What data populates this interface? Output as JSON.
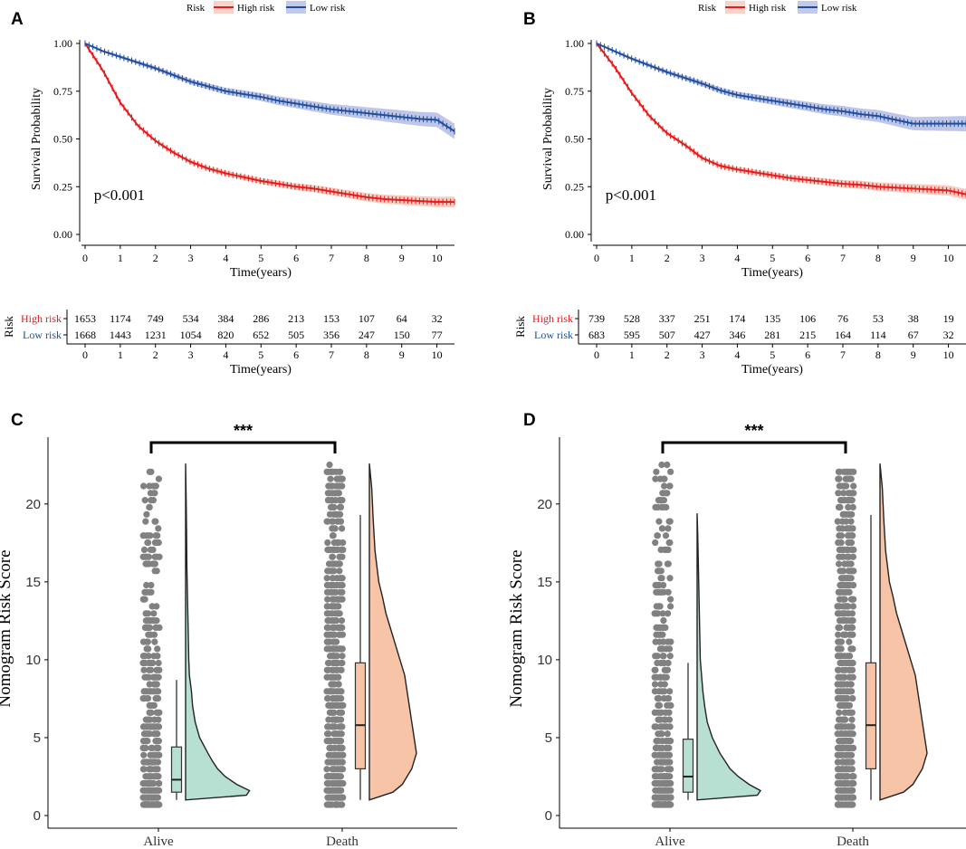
{
  "colors": {
    "high": "#e41a1c",
    "high_fill": "#f4b6a6",
    "low": "#1f4e9c",
    "low_fill": "#a9b3e0",
    "alive_fill": "#b7e0d2",
    "death_fill": "#f7c4a8",
    "axis": "#000000",
    "points": "#1a1a1a"
  },
  "chart_data": [
    {
      "panel": "A",
      "type": "line",
      "legend": {
        "title": "Risk",
        "items": [
          "High risk",
          "Low risk"
        ]
      },
      "annotation": "p<0.001",
      "xlabel": "Time(years)",
      "ylabel": "Survival Probability",
      "xlim": [
        0,
        10.5
      ],
      "ylim": [
        0,
        1
      ],
      "xticks": [
        "0",
        "1",
        "2",
        "3",
        "4",
        "5",
        "6",
        "7",
        "8",
        "9",
        "10"
      ],
      "yticks": [
        "0.00",
        "0.25",
        "0.50",
        "0.75",
        "1.00"
      ],
      "series": [
        {
          "name": "High risk",
          "x": [
            0,
            0.5,
            1,
            1.5,
            2,
            2.5,
            3,
            3.5,
            4,
            4.5,
            5,
            5.5,
            6,
            6.5,
            7,
            7.5,
            8,
            8.5,
            9,
            9.5,
            10,
            10.5
          ],
          "y": [
            1.0,
            0.86,
            0.69,
            0.57,
            0.49,
            0.43,
            0.38,
            0.345,
            0.32,
            0.3,
            0.28,
            0.265,
            0.25,
            0.24,
            0.225,
            0.21,
            0.195,
            0.185,
            0.18,
            0.175,
            0.17,
            0.17
          ]
        },
        {
          "name": "Low risk",
          "x": [
            0,
            0.5,
            1,
            1.5,
            2,
            2.5,
            3,
            3.5,
            4,
            4.5,
            5,
            5.5,
            6,
            6.5,
            7,
            7.5,
            8,
            8.5,
            9,
            9.5,
            10,
            10.5
          ],
          "y": [
            1.0,
            0.96,
            0.93,
            0.9,
            0.87,
            0.835,
            0.8,
            0.775,
            0.75,
            0.735,
            0.72,
            0.7,
            0.685,
            0.67,
            0.655,
            0.645,
            0.635,
            0.625,
            0.615,
            0.605,
            0.6,
            0.54
          ]
        }
      ],
      "risk_table": {
        "title": "Risk",
        "xlabel": "Time(years)",
        "rows": [
          {
            "label": "High risk",
            "counts": [
              "1653",
              "1174",
              "749",
              "534",
              "384",
              "286",
              "213",
              "153",
              "107",
              "64",
              "32"
            ]
          },
          {
            "label": "Low risk",
            "counts": [
              "1668",
              "1443",
              "1231",
              "1054",
              "820",
              "652",
              "505",
              "356",
              "247",
              "150",
              "77"
            ]
          }
        ]
      }
    },
    {
      "panel": "B",
      "type": "line",
      "legend": {
        "title": "Risk",
        "items": [
          "High risk",
          "Low risk"
        ]
      },
      "annotation": "p<0.001",
      "xlabel": "Time(years)",
      "ylabel": "Survival Probability",
      "xlim": [
        0,
        10.5
      ],
      "ylim": [
        0,
        1
      ],
      "xticks": [
        "0",
        "1",
        "2",
        "3",
        "4",
        "5",
        "6",
        "7",
        "8",
        "9",
        "10"
      ],
      "yticks": [
        "0.00",
        "0.25",
        "0.50",
        "0.75",
        "1.00"
      ],
      "series": [
        {
          "name": "High risk",
          "x": [
            0,
            0.5,
            1,
            1.5,
            2,
            2.5,
            3,
            3.5,
            4,
            4.5,
            5,
            5.5,
            6,
            6.5,
            7,
            7.5,
            8,
            8.5,
            9,
            9.5,
            10,
            10.5
          ],
          "y": [
            1.0,
            0.88,
            0.74,
            0.62,
            0.53,
            0.47,
            0.4,
            0.36,
            0.34,
            0.325,
            0.31,
            0.295,
            0.285,
            0.275,
            0.265,
            0.26,
            0.25,
            0.245,
            0.24,
            0.235,
            0.23,
            0.21
          ]
        },
        {
          "name": "Low risk",
          "x": [
            0,
            0.5,
            1,
            1.5,
            2,
            2.5,
            3,
            3.5,
            4,
            4.5,
            5,
            5.5,
            6,
            6.5,
            7,
            7.5,
            8,
            8.5,
            9,
            9.5,
            10,
            10.5
          ],
          "y": [
            1.0,
            0.96,
            0.92,
            0.885,
            0.85,
            0.82,
            0.79,
            0.755,
            0.73,
            0.715,
            0.7,
            0.685,
            0.67,
            0.655,
            0.645,
            0.63,
            0.62,
            0.6,
            0.58,
            0.58,
            0.58,
            0.58
          ]
        }
      ],
      "risk_table": {
        "title": "Risk",
        "xlabel": "Time(years)",
        "rows": [
          {
            "label": "High risk",
            "counts": [
              "739",
              "528",
              "337",
              "251",
              "174",
              "135",
              "106",
              "76",
              "53",
              "38",
              "19"
            ]
          },
          {
            "label": "Low risk",
            "counts": [
              "683",
              "595",
              "507",
              "427",
              "346",
              "281",
              "215",
              "164",
              "114",
              "67",
              "32"
            ]
          }
        ]
      }
    },
    {
      "panel": "C",
      "type": "violin",
      "ylabel": "Nomogram Risk Score",
      "categories": [
        "Alive",
        "Death"
      ],
      "ylim": [
        0,
        24
      ],
      "yticks": [
        "0",
        "5",
        "10",
        "15",
        "20"
      ],
      "significance": "***",
      "boxes": [
        {
          "name": "Alive",
          "q1": 1.5,
          "median": 2.3,
          "q3": 4.4,
          "min": 1.0,
          "max": 8.7
        },
        {
          "name": "Death",
          "q1": 3.0,
          "median": 5.8,
          "q3": 9.8,
          "min": 1.0,
          "max": 19.3
        }
      ],
      "density": [
        {
          "name": "Alive",
          "y": [
            1,
            1.3,
            1.6,
            2,
            2.5,
            3,
            3.5,
            4,
            5,
            6,
            7,
            8,
            9,
            10,
            12,
            14,
            16,
            18,
            20,
            22.6
          ],
          "w": [
            0,
            0.95,
            1.0,
            0.8,
            0.62,
            0.5,
            0.42,
            0.35,
            0.22,
            0.15,
            0.11,
            0.09,
            0.06,
            0.05,
            0.04,
            0.03,
            0.02,
            0.015,
            0.01,
            0
          ]
        },
        {
          "name": "Death",
          "y": [
            1,
            1.5,
            2,
            3,
            4,
            5,
            6,
            7,
            8,
            9,
            10,
            11,
            12,
            13,
            14,
            15,
            17,
            19,
            21,
            22.6
          ],
          "w": [
            0,
            0.5,
            0.7,
            0.9,
            1.0,
            0.95,
            0.9,
            0.85,
            0.8,
            0.75,
            0.65,
            0.55,
            0.45,
            0.35,
            0.28,
            0.2,
            0.12,
            0.08,
            0.05,
            0
          ]
        }
      ]
    },
    {
      "panel": "D",
      "type": "violin",
      "ylabel": "Nomogram Risk Score",
      "categories": [
        "Alive",
        "Death"
      ],
      "ylim": [
        0,
        24
      ],
      "yticks": [
        "0",
        "5",
        "10",
        "15",
        "20"
      ],
      "significance": "***",
      "boxes": [
        {
          "name": "Alive",
          "q1": 1.5,
          "median": 2.5,
          "q3": 4.9,
          "min": 1.0,
          "max": 9.8
        },
        {
          "name": "Death",
          "q1": 3.0,
          "median": 5.8,
          "q3": 9.8,
          "min": 1.0,
          "max": 19.3
        }
      ],
      "density": [
        {
          "name": "Alive",
          "y": [
            1,
            1.3,
            1.6,
            2,
            2.5,
            3,
            3.5,
            4,
            5,
            6,
            7,
            8,
            9,
            10,
            12,
            14,
            16,
            18,
            19.4
          ],
          "w": [
            0,
            0.95,
            1.0,
            0.82,
            0.65,
            0.52,
            0.44,
            0.36,
            0.24,
            0.16,
            0.12,
            0.09,
            0.07,
            0.05,
            0.04,
            0.03,
            0.02,
            0.01,
            0
          ]
        },
        {
          "name": "Death",
          "y": [
            1,
            1.5,
            2,
            3,
            4,
            5,
            6,
            7,
            8,
            9,
            10,
            11,
            12,
            13,
            14,
            15,
            17,
            19,
            21,
            22.6
          ],
          "w": [
            0,
            0.5,
            0.7,
            0.9,
            1.0,
            0.95,
            0.9,
            0.85,
            0.8,
            0.75,
            0.65,
            0.55,
            0.45,
            0.35,
            0.28,
            0.2,
            0.12,
            0.08,
            0.05,
            0
          ]
        }
      ]
    }
  ]
}
